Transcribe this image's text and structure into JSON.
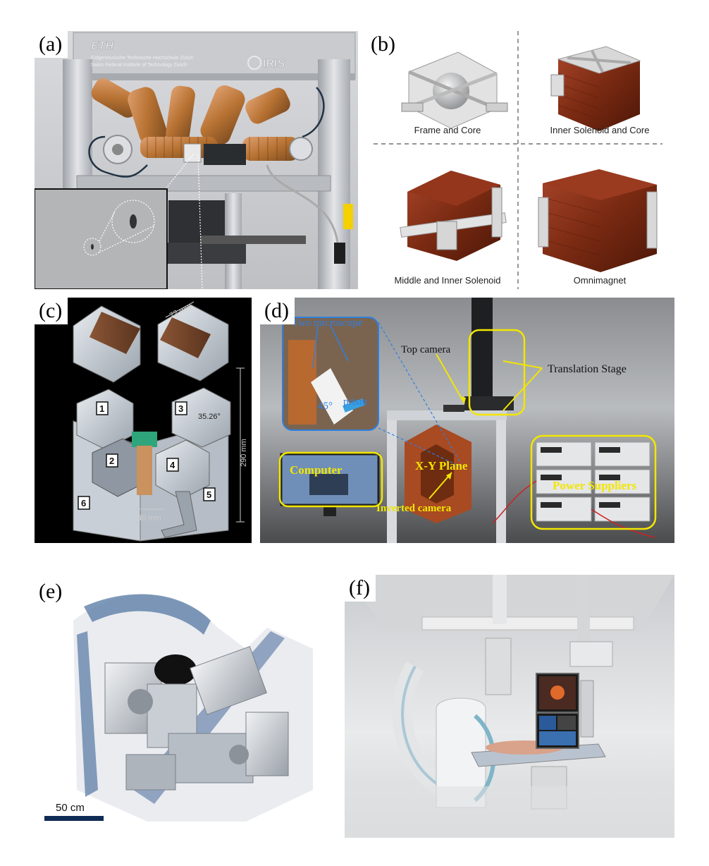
{
  "panels": {
    "a": {
      "label": "(a)",
      "logo_left": "ETH",
      "logo_left_sub1": "Eidgenössische Technische Hochschule Zürich",
      "logo_left_sub2": "Swiss Federal Institute of Technology Zurich",
      "logo_right": "IRIS"
    },
    "b": {
      "label": "(b)",
      "captions": [
        "Frame and Core",
        "Inner Solenoid and Core",
        "Middle and Inner Solenoid",
        "Omnimagnet"
      ]
    },
    "c": {
      "label": "(c)",
      "dims": [
        "72 mm",
        "290 mm",
        "35.26°",
        "40 mm"
      ],
      "numbers": [
        "1",
        "2",
        "3",
        "4",
        "5",
        "6"
      ]
    },
    "d": {
      "label": "(d)",
      "two_microscope": "Two microscope",
      "angle": "45°",
      "prism": "prism",
      "top_camera": "Top camera",
      "translation_stage": "Translation Stage",
      "computer": "Computer",
      "xy_plane": "X-Y Plane",
      "power_suppliers": "Power Suppliers",
      "inverted_camera": "Inverted camera"
    },
    "e": {
      "label": "(e)",
      "scale": "50 cm"
    },
    "f": {
      "label": "(f)"
    }
  },
  "colors": {
    "yellow_annotation": "#f2e600",
    "blue_annotation": "#2f7fe0",
    "scale_bar": "#0f2a55",
    "copper": "#b87333",
    "coil_red": "#7a2a12"
  }
}
